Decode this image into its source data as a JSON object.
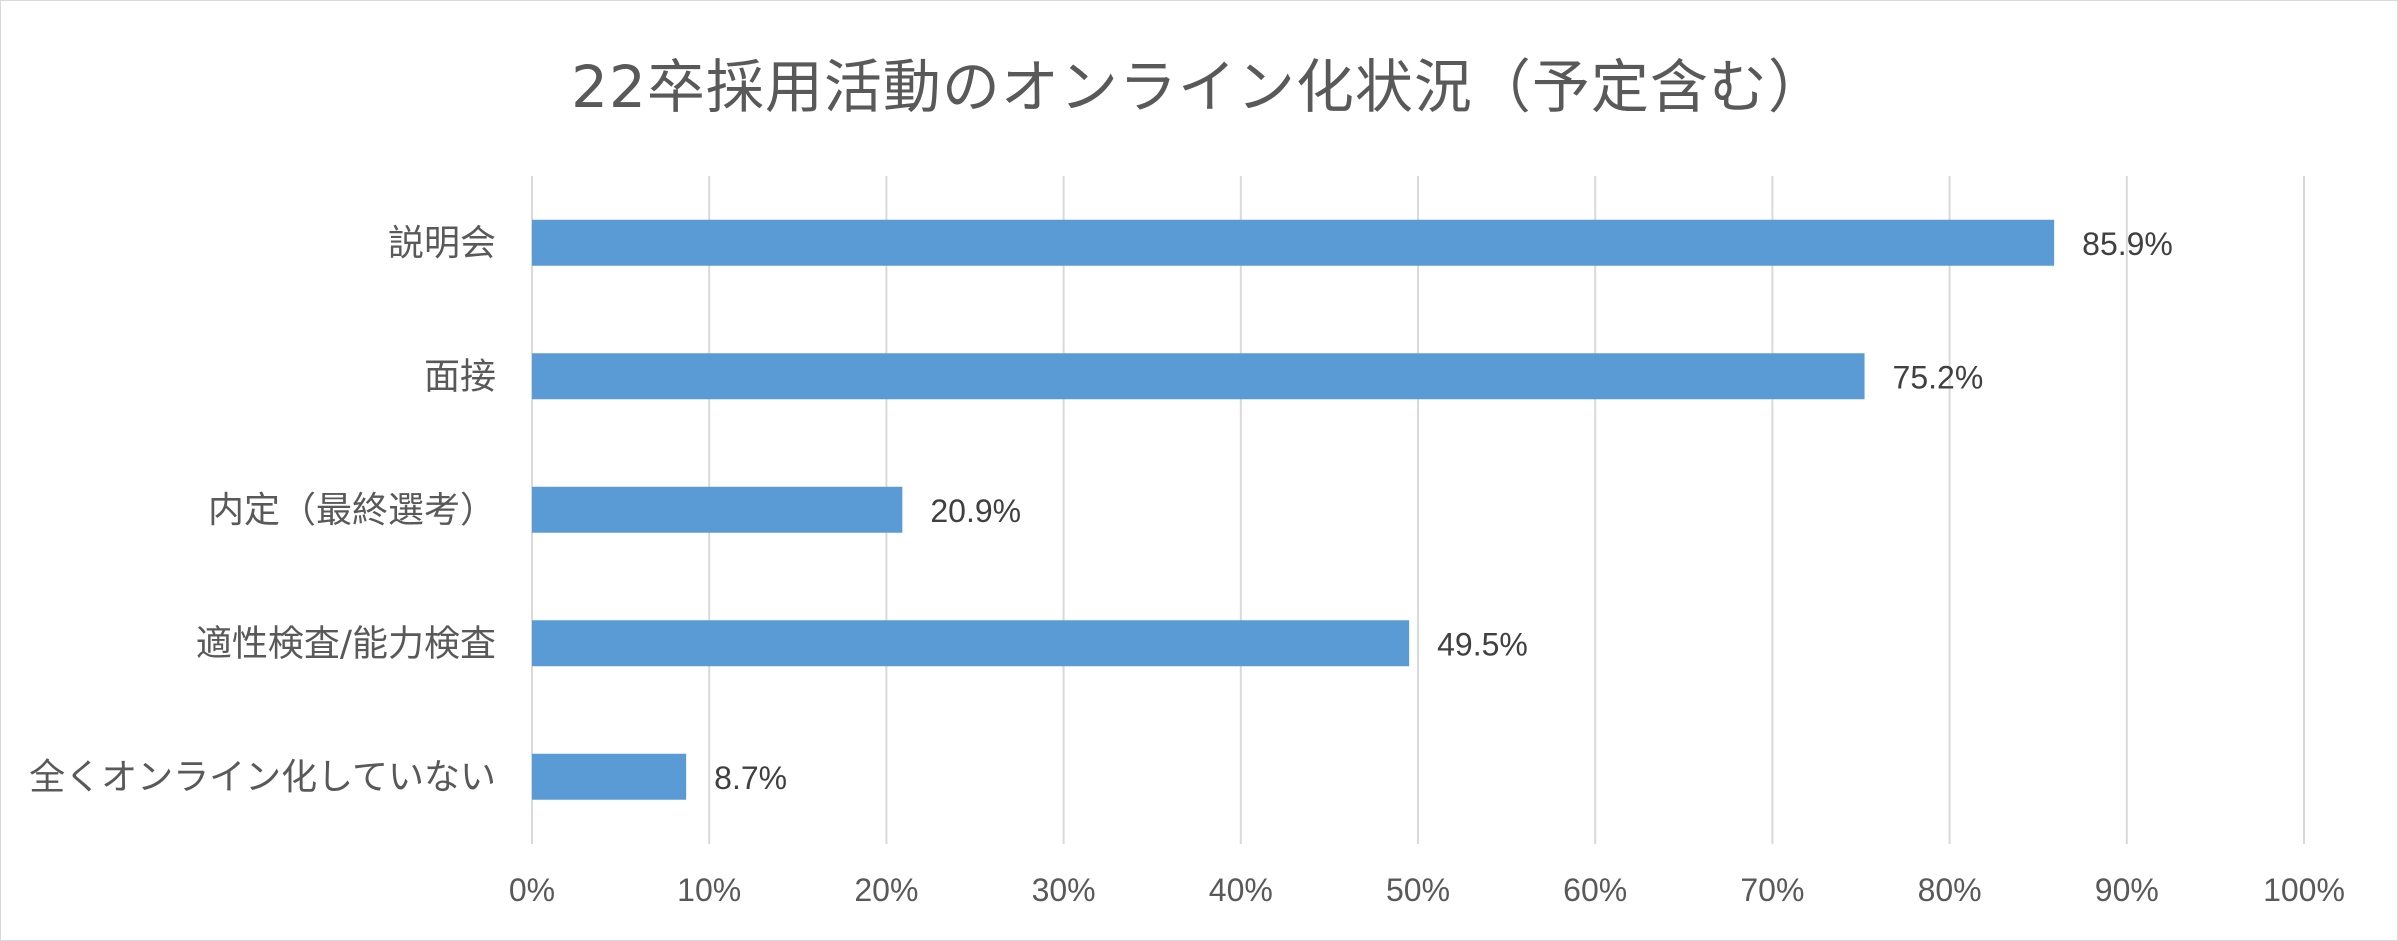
{
  "chart_data": {
    "type": "bar",
    "orientation": "horizontal",
    "title": "22卒採用活動のオンライン化状況（予定含む）",
    "categories": [
      "説明会",
      "面接",
      "内定（最終選考）",
      "適性検査/能力検査",
      "全くオンライン化していない"
    ],
    "values": [
      85.9,
      75.2,
      20.9,
      49.5,
      8.7
    ],
    "value_labels": [
      "85.9%",
      "75.2%",
      "20.9%",
      "49.5%",
      "8.7%"
    ],
    "xlim": [
      0,
      100
    ],
    "x_ticks": [
      0,
      10,
      20,
      30,
      40,
      50,
      60,
      70,
      80,
      90,
      100
    ],
    "x_tick_labels": [
      "0%",
      "10%",
      "20%",
      "30%",
      "40%",
      "50%",
      "60%",
      "70%",
      "80%",
      "90%",
      "100%"
    ],
    "grid": "vertical",
    "legend": "none",
    "colors": {
      "bar": "#5b9bd5",
      "grid": "#d9d9d9",
      "text": "#595959"
    }
  }
}
